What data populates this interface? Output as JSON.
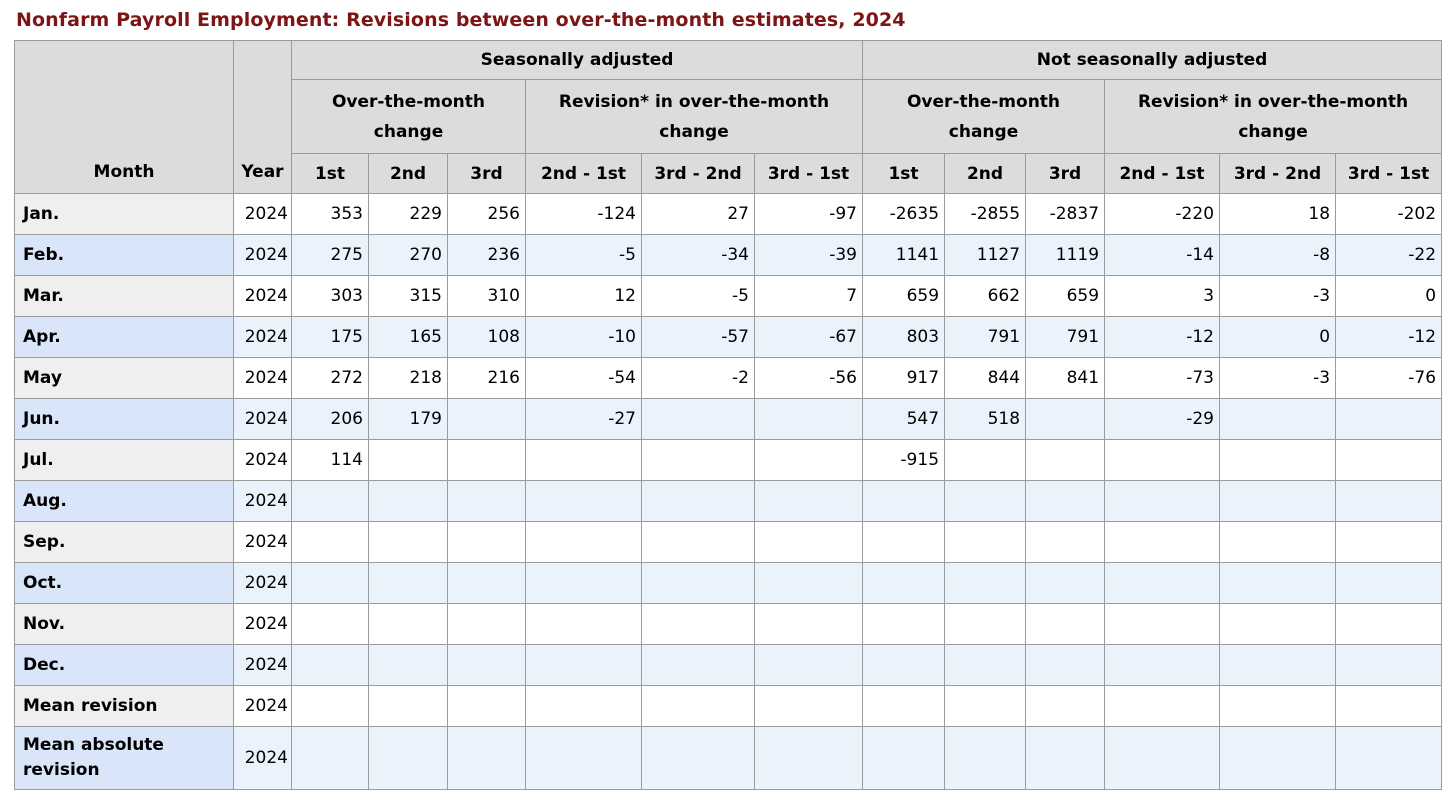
{
  "page": {
    "title": "Nonfarm Payroll Employment: Revisions between over-the-month estimates, 2024"
  },
  "colors": {
    "title_maroon": "#7d1416",
    "header_background": "#dcdcdc",
    "row_gray_header": "#efefef",
    "row_blue_header": "#d9e5f8",
    "row_blue_cell": "#eaf2fc",
    "grid_border": "#9b9b9b"
  },
  "table": {
    "column_headers": {
      "month": "Month",
      "year": "Year",
      "group_seasonally_adjusted": "Seasonally adjusted",
      "group_not_seasonally_adjusted": "Not seasonally adjusted",
      "subgroup_over_the_month": "Over-the-month change",
      "subgroup_revision": "Revision* in over-the-month change",
      "estimates": [
        "1st",
        "2nd",
        "3rd"
      ],
      "revisions": [
        "2nd - 1st",
        "3rd - 2nd",
        "3rd - 1st"
      ]
    },
    "rows": [
      {
        "month": "Jan.",
        "year": "2024",
        "values": [
          "353",
          "229",
          "256",
          "-124",
          "27",
          "-97",
          "-2635",
          "-2855",
          "-2837",
          "-220",
          "18",
          "-202"
        ]
      },
      {
        "month": "Feb.",
        "year": "2024",
        "values": [
          "275",
          "270",
          "236",
          "-5",
          "-34",
          "-39",
          "1141",
          "1127",
          "1119",
          "-14",
          "-8",
          "-22"
        ]
      },
      {
        "month": "Mar.",
        "year": "2024",
        "values": [
          "303",
          "315",
          "310",
          "12",
          "-5",
          "7",
          "659",
          "662",
          "659",
          "3",
          "-3",
          "0"
        ]
      },
      {
        "month": "Apr.",
        "year": "2024",
        "values": [
          "175",
          "165",
          "108",
          "-10",
          "-57",
          "-67",
          "803",
          "791",
          "791",
          "-12",
          "0",
          "-12"
        ]
      },
      {
        "month": "May",
        "year": "2024",
        "values": [
          "272",
          "218",
          "216",
          "-54",
          "-2",
          "-56",
          "917",
          "844",
          "841",
          "-73",
          "-3",
          "-76"
        ]
      },
      {
        "month": "Jun.",
        "year": "2024",
        "values": [
          "206",
          "179",
          "",
          "-27",
          "",
          "",
          "547",
          "518",
          "",
          "-29",
          "",
          ""
        ]
      },
      {
        "month": "Jul.",
        "year": "2024",
        "values": [
          "114",
          "",
          "",
          "",
          "",
          "",
          "-915",
          "",
          "",
          "",
          "",
          ""
        ]
      },
      {
        "month": "Aug.",
        "year": "2024",
        "values": [
          "",
          "",
          "",
          "",
          "",
          "",
          "",
          "",
          "",
          "",
          "",
          ""
        ]
      },
      {
        "month": "Sep.",
        "year": "2024",
        "values": [
          "",
          "",
          "",
          "",
          "",
          "",
          "",
          "",
          "",
          "",
          "",
          ""
        ]
      },
      {
        "month": "Oct.",
        "year": "2024",
        "values": [
          "",
          "",
          "",
          "",
          "",
          "",
          "",
          "",
          "",
          "",
          "",
          ""
        ]
      },
      {
        "month": "Nov.",
        "year": "2024",
        "values": [
          "",
          "",
          "",
          "",
          "",
          "",
          "",
          "",
          "",
          "",
          "",
          ""
        ]
      },
      {
        "month": "Dec.",
        "year": "2024",
        "values": [
          "",
          "",
          "",
          "",
          "",
          "",
          "",
          "",
          "",
          "",
          "",
          ""
        ]
      },
      {
        "month": "Mean revision",
        "year": "2024",
        "values": [
          "",
          "",
          "",
          "",
          "",
          "",
          "",
          "",
          "",
          "",
          "",
          ""
        ]
      },
      {
        "month": "Mean absolute revision",
        "year": "2024",
        "values": [
          "",
          "",
          "",
          "",
          "",
          "",
          "",
          "",
          "",
          "",
          "",
          ""
        ]
      }
    ]
  }
}
